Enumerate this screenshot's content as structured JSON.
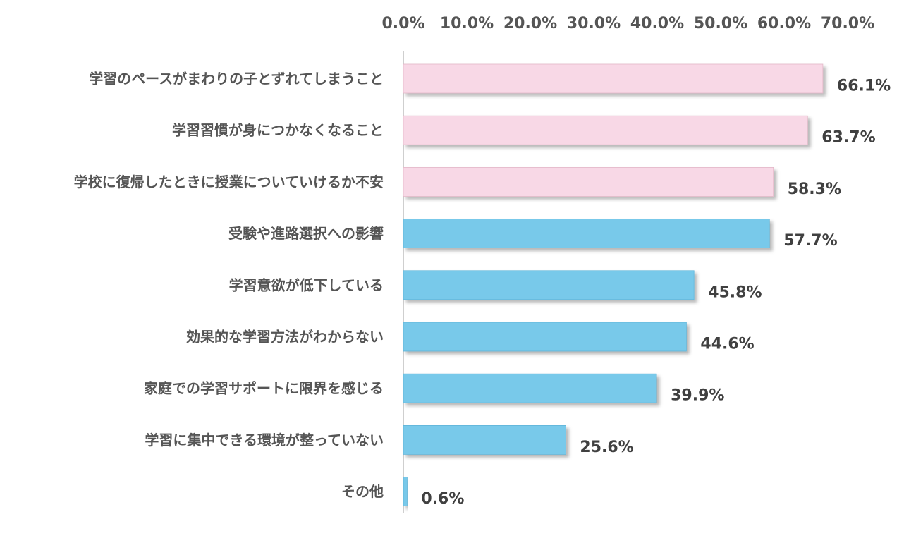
{
  "chart_data": {
    "type": "bar",
    "orientation": "horizontal",
    "categories": [
      "学習のペースがまわりの子とずれてしまうこと",
      "学習習慣が身につかなくなること",
      "学校に復帰したときに授業についていけるか不安",
      "受験や進路選択への影響",
      "学習意欲が低下している",
      "効果的な学習方法がわからない",
      "家庭での学習サポートに限界を感じる",
      "学習に集中できる環境が整っていない",
      "その他"
    ],
    "values": [
      66.1,
      63.7,
      58.3,
      57.7,
      45.8,
      44.6,
      39.9,
      25.6,
      0.6
    ],
    "value_labels": [
      "66.1%",
      "63.7%",
      "58.3%",
      "57.7%",
      "45.8%",
      "44.6%",
      "39.9%",
      "25.6%",
      "0.6%"
    ],
    "xlim": [
      0,
      70
    ],
    "x_ticks": [
      "0.0%",
      "10.0%",
      "20.0%",
      "30.0%",
      "40.0%",
      "50.0%",
      "60.0%",
      "70.0%"
    ],
    "x_axis_position": "top",
    "grid": false,
    "title": "",
    "xlabel": "",
    "ylabel": "",
    "colors": {
      "highlight": "#f8d8e6",
      "highlight_edge": "#e3b8c8",
      "normal": "#78c9ea",
      "normal_edge": "#5fb4d8",
      "axis": "#bfbfbf"
    },
    "highlight_count": 3
  }
}
